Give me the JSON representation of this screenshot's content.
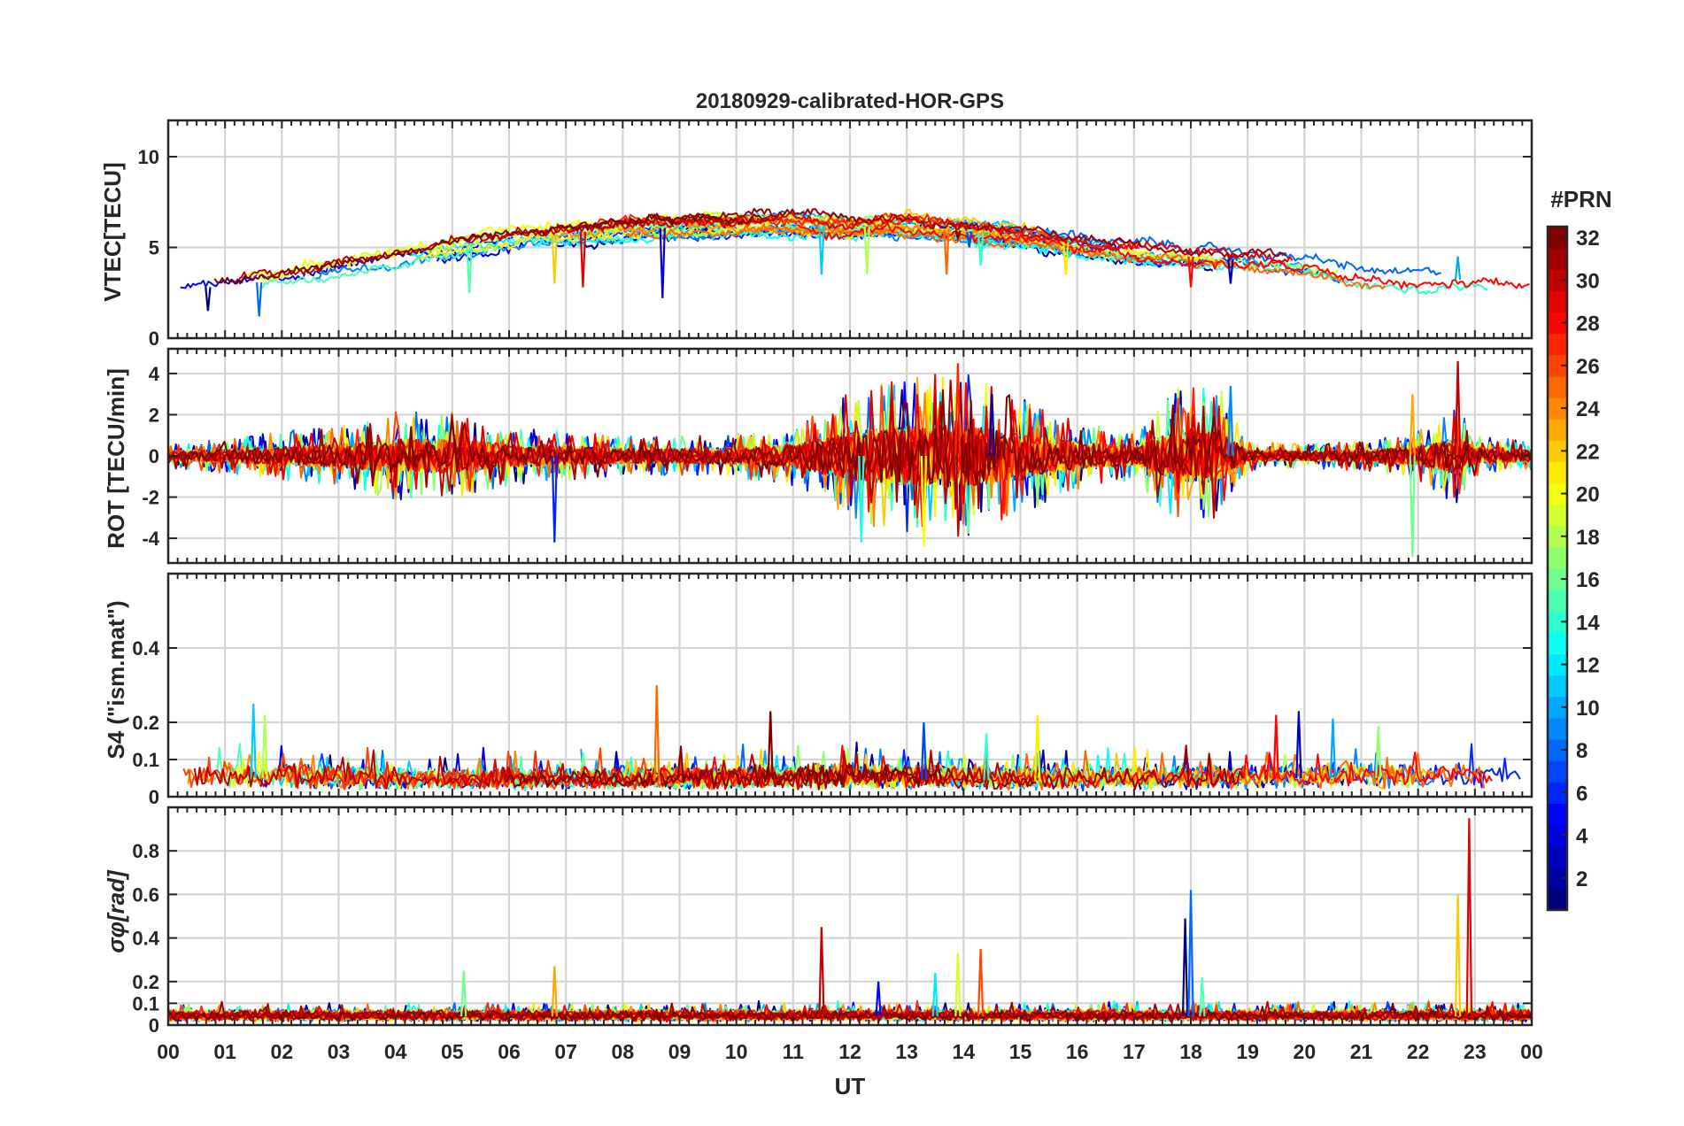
{
  "chart_data": {
    "type": "line",
    "title": "20180929-calibrated-HOR-GPS",
    "xlabel": "UT",
    "x_tick_labels": [
      "00",
      "01",
      "02",
      "03",
      "04",
      "05",
      "06",
      "07",
      "08",
      "09",
      "10",
      "11",
      "12",
      "13",
      "14",
      "15",
      "16",
      "17",
      "18",
      "19",
      "20",
      "21",
      "22",
      "23",
      "00"
    ],
    "x_range_hours": [
      0,
      24
    ],
    "grid": true,
    "colormap": "jet",
    "colorbar": {
      "title": "#PRN",
      "range": [
        1,
        32
      ],
      "tick_labels": [
        "2",
        "4",
        "6",
        "8",
        "10",
        "12",
        "14",
        "16",
        "18",
        "20",
        "22",
        "24",
        "26",
        "28",
        "30",
        "32"
      ],
      "placement": "right"
    },
    "panels": [
      {
        "name": "vtec",
        "ylabel": "VTEC[TECU]",
        "ylim": [
          0,
          12
        ],
        "y_ticks": [
          0,
          5,
          10
        ],
        "y_tick_labels": [
          "0",
          "5",
          "10"
        ],
        "baseline": [
          [
            0,
            2.6
          ],
          [
            1,
            2.9
          ],
          [
            2,
            3.2
          ],
          [
            3,
            3.9
          ],
          [
            4,
            4.3
          ],
          [
            5,
            5.0
          ],
          [
            6,
            5.4
          ],
          [
            7,
            5.8
          ],
          [
            8,
            6.0
          ],
          [
            9,
            6.1
          ],
          [
            10,
            6.2
          ],
          [
            11,
            6.3
          ],
          [
            12,
            6.1
          ],
          [
            13,
            6.2
          ],
          [
            14,
            5.9
          ],
          [
            15,
            5.6
          ],
          [
            16,
            5.2
          ],
          [
            17,
            4.8
          ],
          [
            18,
            4.5
          ],
          [
            19,
            4.3
          ],
          [
            20,
            4.0
          ],
          [
            21,
            3.3
          ],
          [
            22,
            3.0
          ],
          [
            23,
            3.3
          ],
          [
            24,
            3.0
          ]
        ],
        "noise": 0.35,
        "spikes": [
          [
            0.7,
            1.5
          ],
          [
            1.6,
            1.2
          ],
          [
            5.3,
            2.5
          ],
          [
            6.8,
            3.0
          ],
          [
            7.3,
            2.8
          ],
          [
            8.7,
            2.2
          ],
          [
            11.5,
            3.5
          ],
          [
            12.3,
            3.5
          ],
          [
            13.7,
            3.5
          ],
          [
            13.9,
            5.5
          ],
          [
            14.1,
            5.0
          ],
          [
            14.3,
            4.0
          ],
          [
            15.8,
            3.5
          ],
          [
            18.0,
            2.8
          ],
          [
            18.7,
            3.0
          ],
          [
            22.7,
            4.5
          ]
        ]
      },
      {
        "name": "rot",
        "ylabel": "ROT [TECU/min]",
        "ylim": [
          -5.2,
          5.2
        ],
        "y_ticks": [
          -4,
          -2,
          0,
          2,
          4
        ],
        "y_tick_labels": [
          "-4",
          "-2",
          "0",
          "2",
          "4"
        ],
        "baseline": [
          [
            0,
            0
          ],
          [
            24,
            0
          ]
        ],
        "activity": [
          [
            0,
            0.25
          ],
          [
            1,
            0.35
          ],
          [
            2,
            0.5
          ],
          [
            3,
            0.6
          ],
          [
            4,
            0.9
          ],
          [
            5,
            0.9
          ],
          [
            6,
            0.6
          ],
          [
            7,
            0.5
          ],
          [
            8,
            0.4
          ],
          [
            9,
            0.4
          ],
          [
            10,
            0.45
          ],
          [
            11,
            0.6
          ],
          [
            12,
            1.3
          ],
          [
            13,
            1.6
          ],
          [
            14,
            1.7
          ],
          [
            15,
            1.2
          ],
          [
            16,
            0.7
          ],
          [
            17,
            0.5
          ],
          [
            17.8,
            1.4
          ],
          [
            18.5,
            1.4
          ],
          [
            19,
            0.3
          ],
          [
            20,
            0.25
          ],
          [
            21,
            0.3
          ],
          [
            22,
            0.5
          ],
          [
            22.7,
            1.0
          ],
          [
            23,
            0.4
          ],
          [
            24,
            0.3
          ]
        ],
        "spikes": [
          [
            6.8,
            -4.2
          ],
          [
            12.2,
            -4.2
          ],
          [
            13.3,
            -4.4
          ],
          [
            13.9,
            4.5
          ],
          [
            14.5,
            3.0
          ],
          [
            18.7,
            3.4
          ],
          [
            21.9,
            -4.9
          ],
          [
            21.9,
            3.0
          ],
          [
            22.7,
            4.6
          ]
        ]
      },
      {
        "name": "s4",
        "ylabel": "S4 (\"ism.mat\")",
        "ylim": [
          0,
          0.6
        ],
        "y_ticks": [
          0,
          0.1,
          0.2,
          0.4
        ],
        "y_tick_labels": [
          "0",
          "0.1",
          "0.2",
          "0.4"
        ],
        "baseline": [
          [
            0,
            0.05
          ],
          [
            2,
            0.05
          ],
          [
            4,
            0.04
          ],
          [
            8,
            0.04
          ],
          [
            12,
            0.05
          ],
          [
            16,
            0.04
          ],
          [
            20,
            0.05
          ],
          [
            24,
            0.05
          ]
        ],
        "noise": 0.028,
        "spikes": [
          [
            1.5,
            0.25
          ],
          [
            1.7,
            0.22
          ],
          [
            8.6,
            0.3
          ],
          [
            10.6,
            0.23
          ],
          [
            13.3,
            0.2
          ],
          [
            14.4,
            0.17
          ],
          [
            15.3,
            0.22
          ],
          [
            19.5,
            0.22
          ],
          [
            19.9,
            0.23
          ],
          [
            20.5,
            0.21
          ],
          [
            21.3,
            0.19
          ]
        ]
      },
      {
        "name": "sigma_phi",
        "ylabel": "σφ[rad]",
        "ylim": [
          0,
          1.0
        ],
        "y_ticks": [
          0,
          0.1,
          0.2,
          0.4,
          0.6,
          0.8
        ],
        "y_tick_labels": [
          "0",
          "0.1",
          "0.2",
          "0.4",
          "0.6",
          "0.8"
        ],
        "baseline": [
          [
            0,
            0.04
          ],
          [
            24,
            0.04
          ]
        ],
        "noise": 0.02,
        "spikes": [
          [
            5.2,
            0.25
          ],
          [
            6.8,
            0.27
          ],
          [
            11.5,
            0.45
          ],
          [
            12.5,
            0.2
          ],
          [
            13.5,
            0.24
          ],
          [
            13.9,
            0.33
          ],
          [
            14.3,
            0.35
          ],
          [
            17.9,
            0.49
          ],
          [
            18.0,
            0.62
          ],
          [
            18.2,
            0.22
          ],
          [
            22.7,
            0.6
          ],
          [
            22.9,
            0.95
          ]
        ]
      }
    ]
  }
}
